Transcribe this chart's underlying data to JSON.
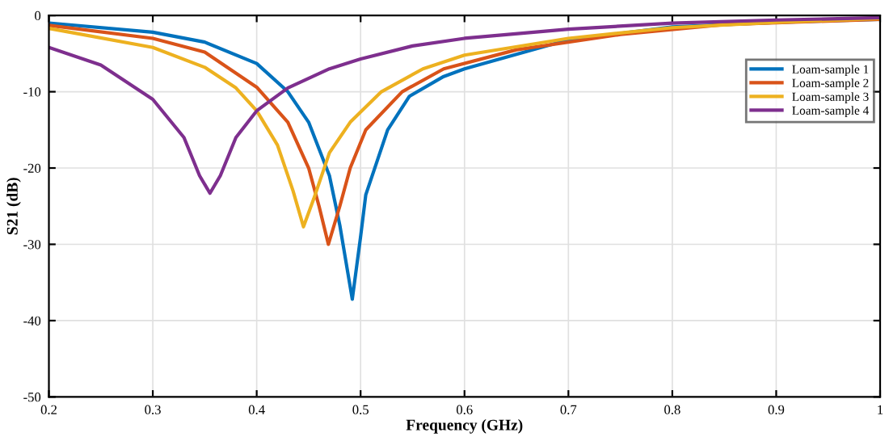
{
  "chart_data": {
    "type": "line",
    "xlabel": "Frequency (GHz)",
    "ylabel": "S21 (dB)",
    "xlim": [
      0.2,
      1
    ],
    "ylim": [
      -50,
      0
    ],
    "xticks": [
      0.2,
      0.3,
      0.4,
      0.5,
      0.6,
      0.7,
      0.8,
      0.9,
      1
    ],
    "yticks": [
      -50,
      -40,
      -30,
      -20,
      -10,
      0
    ],
    "grid": true,
    "legend": "top right",
    "marker": "none",
    "line_style": "solid",
    "series": [
      {
        "name": "Loam-sample 1",
        "color": "#0072bd",
        "x": [
          0.2,
          0.3,
          0.35,
          0.4,
          0.43,
          0.45,
          0.47,
          0.48,
          0.492,
          0.5,
          0.505,
          0.526,
          0.547,
          0.58,
          0.6,
          0.7,
          0.8,
          0.9,
          1.0
        ],
        "values": [
          -1.0,
          -2.2,
          -3.5,
          -6.3,
          -10,
          -14,
          -21,
          -27.5,
          -37.2,
          -29,
          -23.5,
          -15,
          -10.6,
          -8,
          -7,
          -3.2,
          -1.5,
          -0.9,
          -0.5
        ]
      },
      {
        "name": "Loam-sample 2",
        "color": "#d95319",
        "x": [
          0.2,
          0.3,
          0.35,
          0.4,
          0.43,
          0.45,
          0.46,
          0.469,
          0.48,
          0.49,
          0.505,
          0.54,
          0.58,
          0.65,
          0.75,
          0.85,
          1.0
        ],
        "values": [
          -1.3,
          -3,
          -4.8,
          -9.4,
          -14,
          -20,
          -25,
          -30,
          -25,
          -20,
          -15,
          -10,
          -7,
          -4.5,
          -2.5,
          -1.2,
          -0.5
        ]
      },
      {
        "name": "Loam-sample 3",
        "color": "#edb120",
        "x": [
          0.2,
          0.3,
          0.35,
          0.38,
          0.4,
          0.42,
          0.435,
          0.445,
          0.455,
          0.47,
          0.49,
          0.52,
          0.56,
          0.6,
          0.7,
          0.8,
          0.9,
          1.0
        ],
        "values": [
          -1.7,
          -4.2,
          -6.8,
          -9.5,
          -12.5,
          -17,
          -23,
          -27.7,
          -24,
          -18,
          -14,
          -10,
          -7,
          -5.2,
          -3,
          -1.6,
          -0.9,
          -0.4
        ]
      },
      {
        "name": "Loam-sample 4",
        "color": "#7e2f8e",
        "x": [
          0.2,
          0.25,
          0.3,
          0.33,
          0.345,
          0.355,
          0.365,
          0.38,
          0.4,
          0.43,
          0.47,
          0.5,
          0.55,
          0.6,
          0.7,
          0.8,
          0.9,
          1.0
        ],
        "values": [
          -4.2,
          -6.5,
          -11,
          -16,
          -21,
          -23.3,
          -21,
          -16,
          -12.5,
          -9.5,
          -7,
          -5.7,
          -4,
          -3,
          -1.8,
          -1,
          -0.6,
          -0.3
        ]
      }
    ]
  }
}
